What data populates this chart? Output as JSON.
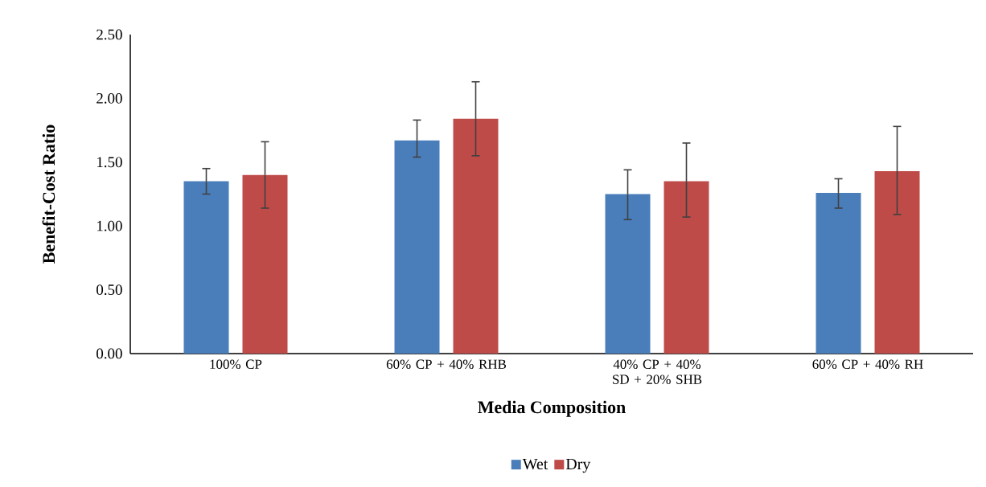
{
  "chart_data": {
    "type": "bar",
    "xlabel": "Media Composition",
    "ylabel": "Benefit-Cost Ratio",
    "categories": [
      "100% CP",
      "60% CP + 40% RHB",
      "40% CP + 40% SD + 20% SHB",
      "60% CP + 40% RH"
    ],
    "series": [
      {
        "name": "Wet",
        "color": "#4a7ebb",
        "values": [
          1.35,
          1.67,
          1.25,
          1.26
        ],
        "errors": [
          [
            1.25,
            1.45
          ],
          [
            1.54,
            1.83
          ],
          [
            1.05,
            1.44
          ],
          [
            1.14,
            1.37
          ]
        ]
      },
      {
        "name": "Dry",
        "color": "#be4b48",
        "values": [
          1.4,
          1.84,
          1.35,
          1.43
        ],
        "errors": [
          [
            1.14,
            1.66
          ],
          [
            1.55,
            2.13
          ],
          [
            1.07,
            1.65
          ],
          [
            1.09,
            1.78
          ]
        ]
      }
    ],
    "ylim": [
      0,
      2.5
    ],
    "yticks": [
      {
        "value": 0,
        "label": "0.00"
      },
      {
        "value": 0.5,
        "label": "0.50"
      },
      {
        "value": 1,
        "label": "1.00"
      },
      {
        "value": 1.5,
        "label": "1.50"
      },
      {
        "value": 2,
        "label": "2.00"
      },
      {
        "value": 2.5,
        "label": "2.50"
      }
    ],
    "grid": false,
    "legend": "bottom"
  }
}
